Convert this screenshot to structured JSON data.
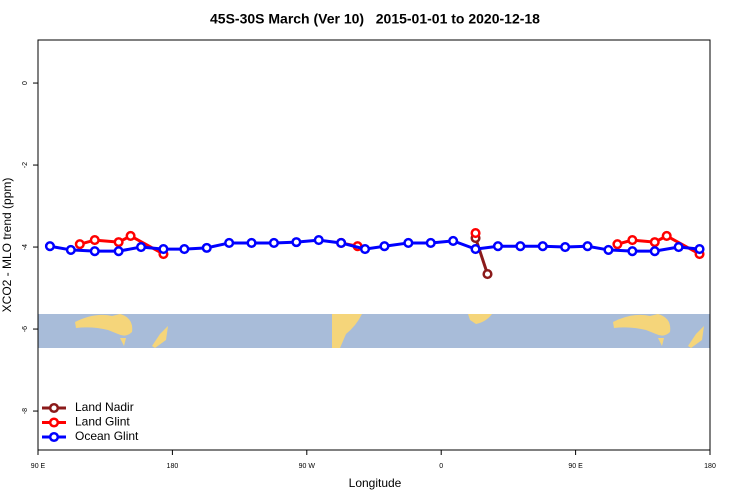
{
  "chart_data": {
    "type": "line",
    "title": "45S-30S March (Ver 10)   2015-01-01 to 2020-12-18",
    "x_label": "Longitude",
    "y_label": "XCO2 - MLO trend (ppm)",
    "xlim": [
      90,
      540
    ],
    "ylim": [
      -8.95,
      1.05
    ],
    "xticks": [
      {
        "value": 90,
        "label": "90 E"
      },
      {
        "value": 180,
        "label": "180"
      },
      {
        "value": 270,
        "label": "90 W"
      },
      {
        "value": 360,
        "label": "0"
      },
      {
        "value": 450,
        "label": "90 E"
      },
      {
        "value": 540,
        "label": "180"
      }
    ],
    "yticks": [
      0,
      -2,
      -4,
      -6,
      -8
    ],
    "legend": "bottom-left",
    "series": [
      {
        "name": "Land Nadir",
        "color": "#8b1a1a",
        "x": [
          383,
          391
        ],
        "values": [
          -3.78,
          -4.66
        ]
      },
      {
        "name": "Land Glint",
        "color": "#ff0000",
        "x": [
          118,
          128,
          144,
          152,
          174,
          null,
          293,
          304,
          null,
          383,
          null,
          478,
          488,
          503,
          511,
          533
        ],
        "values": [
          -3.93,
          -3.83,
          -3.88,
          -3.73,
          -4.17,
          null,
          -3.9,
          -3.98,
          null,
          -3.66,
          null,
          -3.93,
          -3.83,
          -3.88,
          -3.73,
          -4.17
        ]
      },
      {
        "name": "Ocean Glint",
        "color": "#0000ff",
        "x": [
          98,
          112,
          128,
          144,
          159,
          174,
          188,
          203,
          218,
          233,
          248,
          263,
          278,
          293,
          309,
          322,
          338,
          353,
          368,
          383,
          398,
          413,
          428,
          443,
          458,
          472,
          488,
          503,
          519,
          533
        ],
        "values": [
          -3.98,
          -4.07,
          -4.1,
          -4.1,
          -4.0,
          -4.05,
          -4.05,
          -4.02,
          -3.9,
          -3.9,
          -3.9,
          -3.88,
          -3.83,
          -3.9,
          -4.05,
          -3.98,
          -3.9,
          -3.9,
          -3.85,
          -4.05,
          -3.98,
          -3.98,
          -3.98,
          -4.0,
          -3.98,
          -4.07,
          -4.1,
          -4.1,
          -4.0,
          -4.05
        ]
      }
    ]
  }
}
